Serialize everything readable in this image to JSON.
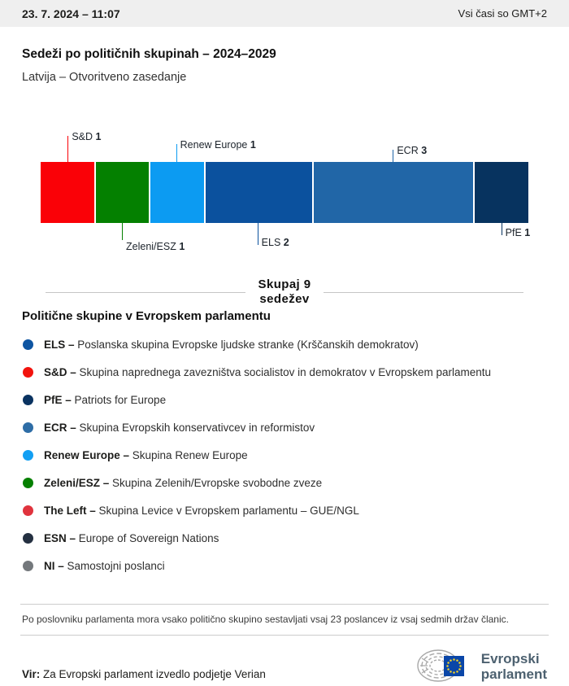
{
  "header": {
    "datetime": "23. 7. 2024 – 11:07",
    "timezone_note": "Vsi časi so GMT+2"
  },
  "title": "Sedeži po političnih skupinah – 2024–2029",
  "subtitle": "Latvija – Otvoritveno zasedanje",
  "chart_data": {
    "type": "bar",
    "title": "Sedeži po političnih skupinah – 2024–2029",
    "total_seats": 9,
    "total_label": "Skupaj 9\nsedežev",
    "categories": [
      "S&D",
      "Zeleni/ESZ",
      "Renew Europe",
      "ELS",
      "ECR",
      "PfE"
    ],
    "values": [
      1,
      1,
      1,
      2,
      3,
      1
    ],
    "segments": [
      {
        "group": "S&D",
        "seats": 1,
        "color": "#fa0107"
      },
      {
        "group": "Zeleni/ESZ",
        "seats": 1,
        "color": "#048000"
      },
      {
        "group": "Renew Europe",
        "seats": 1,
        "color": "#0c9bf2"
      },
      {
        "group": "ELS",
        "seats": 2,
        "color": "#0b519e"
      },
      {
        "group": "ECR",
        "seats": 3,
        "color": "#2166a7"
      },
      {
        "group": "PfE",
        "seats": 1,
        "color": "#07335f"
      }
    ]
  },
  "legend": {
    "heading": "Politične skupine v Evropskem parlamentu",
    "items": [
      {
        "abbr": "ELS",
        "desc": "Poslanska skupina Evropske ljudske stranke (Krščanskih demokratov)",
        "color": "#0e55a2"
      },
      {
        "abbr": "S&D",
        "desc": "Skupina naprednega zavezništva socialistov in demokratov v Evropskem parlamentu",
        "color": "#f2130d"
      },
      {
        "abbr": "PfE",
        "desc": "Patriots for Europe",
        "color": "#0a3361"
      },
      {
        "abbr": "ECR",
        "desc": "Skupina Evropskih konservativcev in reformistov",
        "color": "#2e6da6"
      },
      {
        "abbr": "Renew Europe",
        "desc": "Skupina Renew Europe",
        "color": "#129ff3"
      },
      {
        "abbr": "Zeleni/ESZ",
        "desc": "Skupina Zelenih/Evropske svobodne zveze",
        "color": "#058000"
      },
      {
        "abbr": "The Left",
        "desc": "Skupina Levice v Evropskem parlamentu – GUE/NGL",
        "color": "#e0333d"
      },
      {
        "abbr": "ESN",
        "desc": "Europe of Sovereign Nations",
        "color": "#243041"
      },
      {
        "abbr": "NI",
        "desc": "Samostojni poslanci",
        "color": "#74787c"
      }
    ]
  },
  "footnote": "Po poslovniku parlamenta mora vsako politično skupino sestavljati vsaj 23 poslancev iz vsaj sedmih držav članic.",
  "source": {
    "label": "Vir:",
    "text": "Za Evropski parlament izvedlo podjetje Verian"
  },
  "logo": {
    "line1": "Evropski",
    "line2": "parlament",
    "flag_color": "#0a46a8",
    "star_color": "#f5d327"
  }
}
